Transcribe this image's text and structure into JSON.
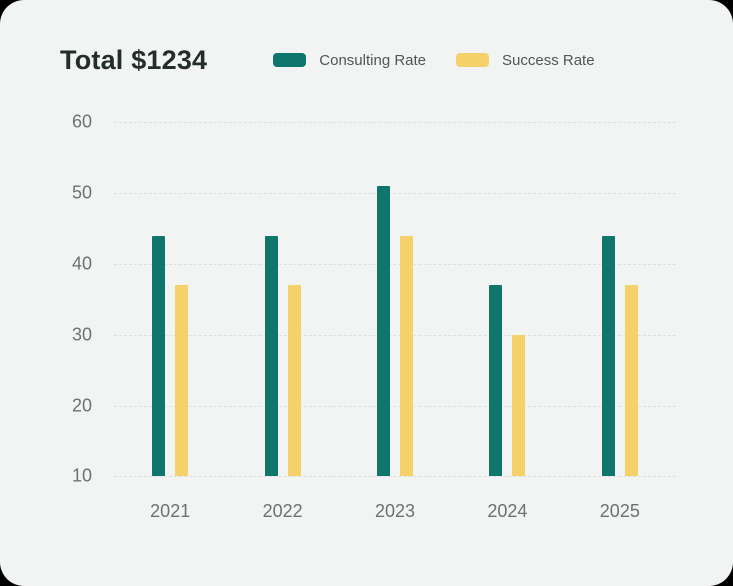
{
  "page": {
    "background": "#000000",
    "card_background": "#F2F4F3"
  },
  "header": {
    "title": "Total $1234"
  },
  "chart_data": {
    "type": "bar",
    "title": "Total $1234",
    "categories": [
      "2021",
      "2022",
      "2023",
      "2024",
      "2025"
    ],
    "series": [
      {
        "name": "Consulting Rate",
        "color": "#0F766E",
        "values": [
          44,
          44,
          51,
          37,
          44
        ]
      },
      {
        "name": "Success Rate",
        "color": "#F5D169",
        "values": [
          37,
          37,
          44,
          30,
          37
        ]
      }
    ],
    "ylim": [
      10,
      60
    ],
    "yticks": [
      60,
      50,
      40,
      30,
      20,
      10
    ],
    "grid": "horizontal-dashed",
    "legend_position": "top",
    "colors": {
      "grid": "#DDE1DE",
      "axis_label": "#6A7370",
      "title": "#232D2B",
      "legend_label": "#4E5754"
    }
  }
}
